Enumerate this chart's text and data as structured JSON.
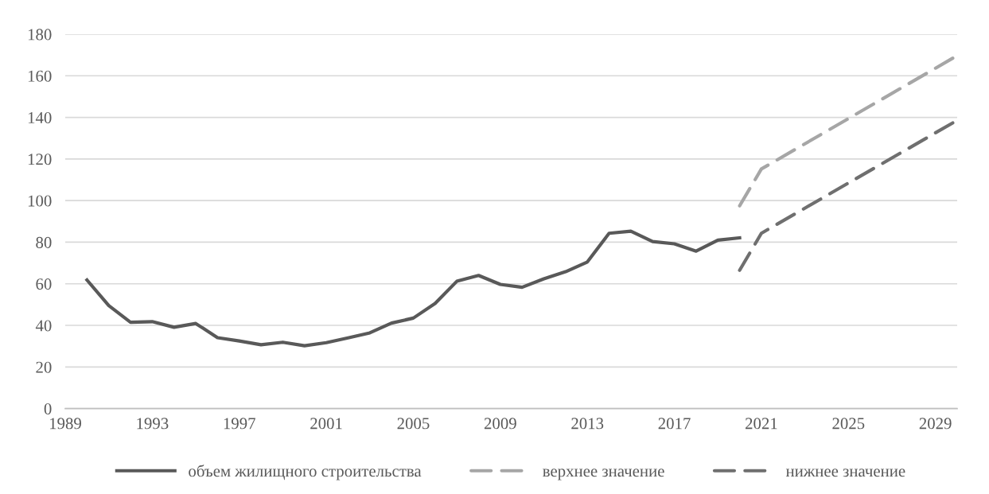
{
  "chart_data": {
    "type": "line",
    "xlim": [
      1989,
      2030
    ],
    "xticks": [
      1989,
      1993,
      1997,
      2001,
      2005,
      2009,
      2013,
      2017,
      2021,
      2025,
      2029
    ],
    "ylim": [
      0,
      180
    ],
    "yticks": [
      0,
      20,
      40,
      60,
      80,
      100,
      120,
      140,
      160,
      180
    ],
    "grid": "y",
    "legend": "bottom",
    "marker": "none",
    "series": [
      {
        "name": "объем жилищного строительства",
        "color": "#595959",
        "line_style": "solid",
        "x": [
          1990,
          1991,
          1992,
          1993,
          1994,
          1995,
          1996,
          1997,
          1998,
          1999,
          2000,
          2001,
          2002,
          2003,
          2004,
          2005,
          2006,
          2007,
          2008,
          2009,
          2010,
          2011,
          2012,
          2013,
          2014,
          2015,
          2016,
          2017,
          2018,
          2019,
          2020
        ],
        "values": [
          61.8,
          49.5,
          41.5,
          41.8,
          39.1,
          40.9,
          34.1,
          32.5,
          30.7,
          31.9,
          30.2,
          31.7,
          34.0,
          36.4,
          41.1,
          43.5,
          50.5,
          61.2,
          64.0,
          59.7,
          58.3,
          62.4,
          65.8,
          70.5,
          84.3,
          85.3,
          80.3,
          79.2,
          75.7,
          81.0,
          82.1
        ]
      },
      {
        "name": "верхнее значение",
        "color": "#a6a6a6",
        "line_style": "dashed",
        "x": [
          2020,
          2021,
          2030
        ],
        "values": [
          97.5,
          115.2,
          169.7
        ]
      },
      {
        "name": "нижнее значение",
        "color": "#6f6f6f",
        "line_style": "dashed",
        "x": [
          2020,
          2021,
          2030
        ],
        "values": [
          66.5,
          84.3,
          138.6
        ]
      }
    ]
  }
}
